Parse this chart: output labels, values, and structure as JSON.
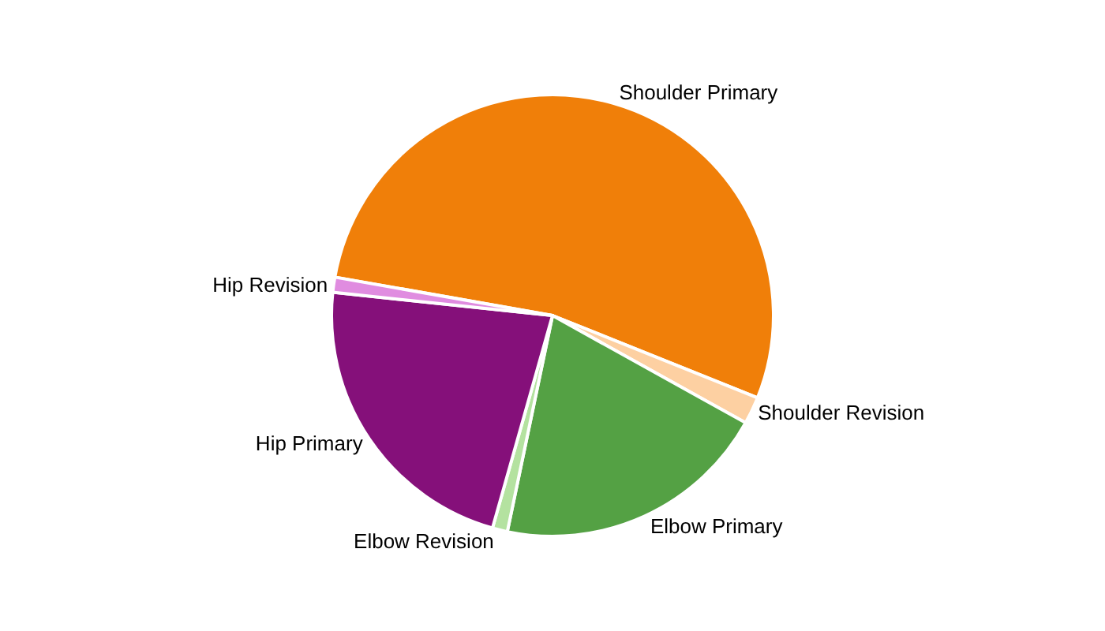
{
  "chart_data": {
    "type": "pie",
    "categories": [
      "Shoulder Primary",
      "Shoulder Revision",
      "Elbow Primary",
      "Elbow Revision",
      "Hip Primary",
      "Hip Revision"
    ],
    "values": [
      53.3,
      2,
      20.2,
      1.1,
      22.3,
      1.1
    ],
    "colors": [
      "#f07f09",
      "#fdd0a2",
      "#54a144",
      "#b4e2a0",
      "#85107a",
      "#e08ce0"
    ],
    "legend": false
  }
}
